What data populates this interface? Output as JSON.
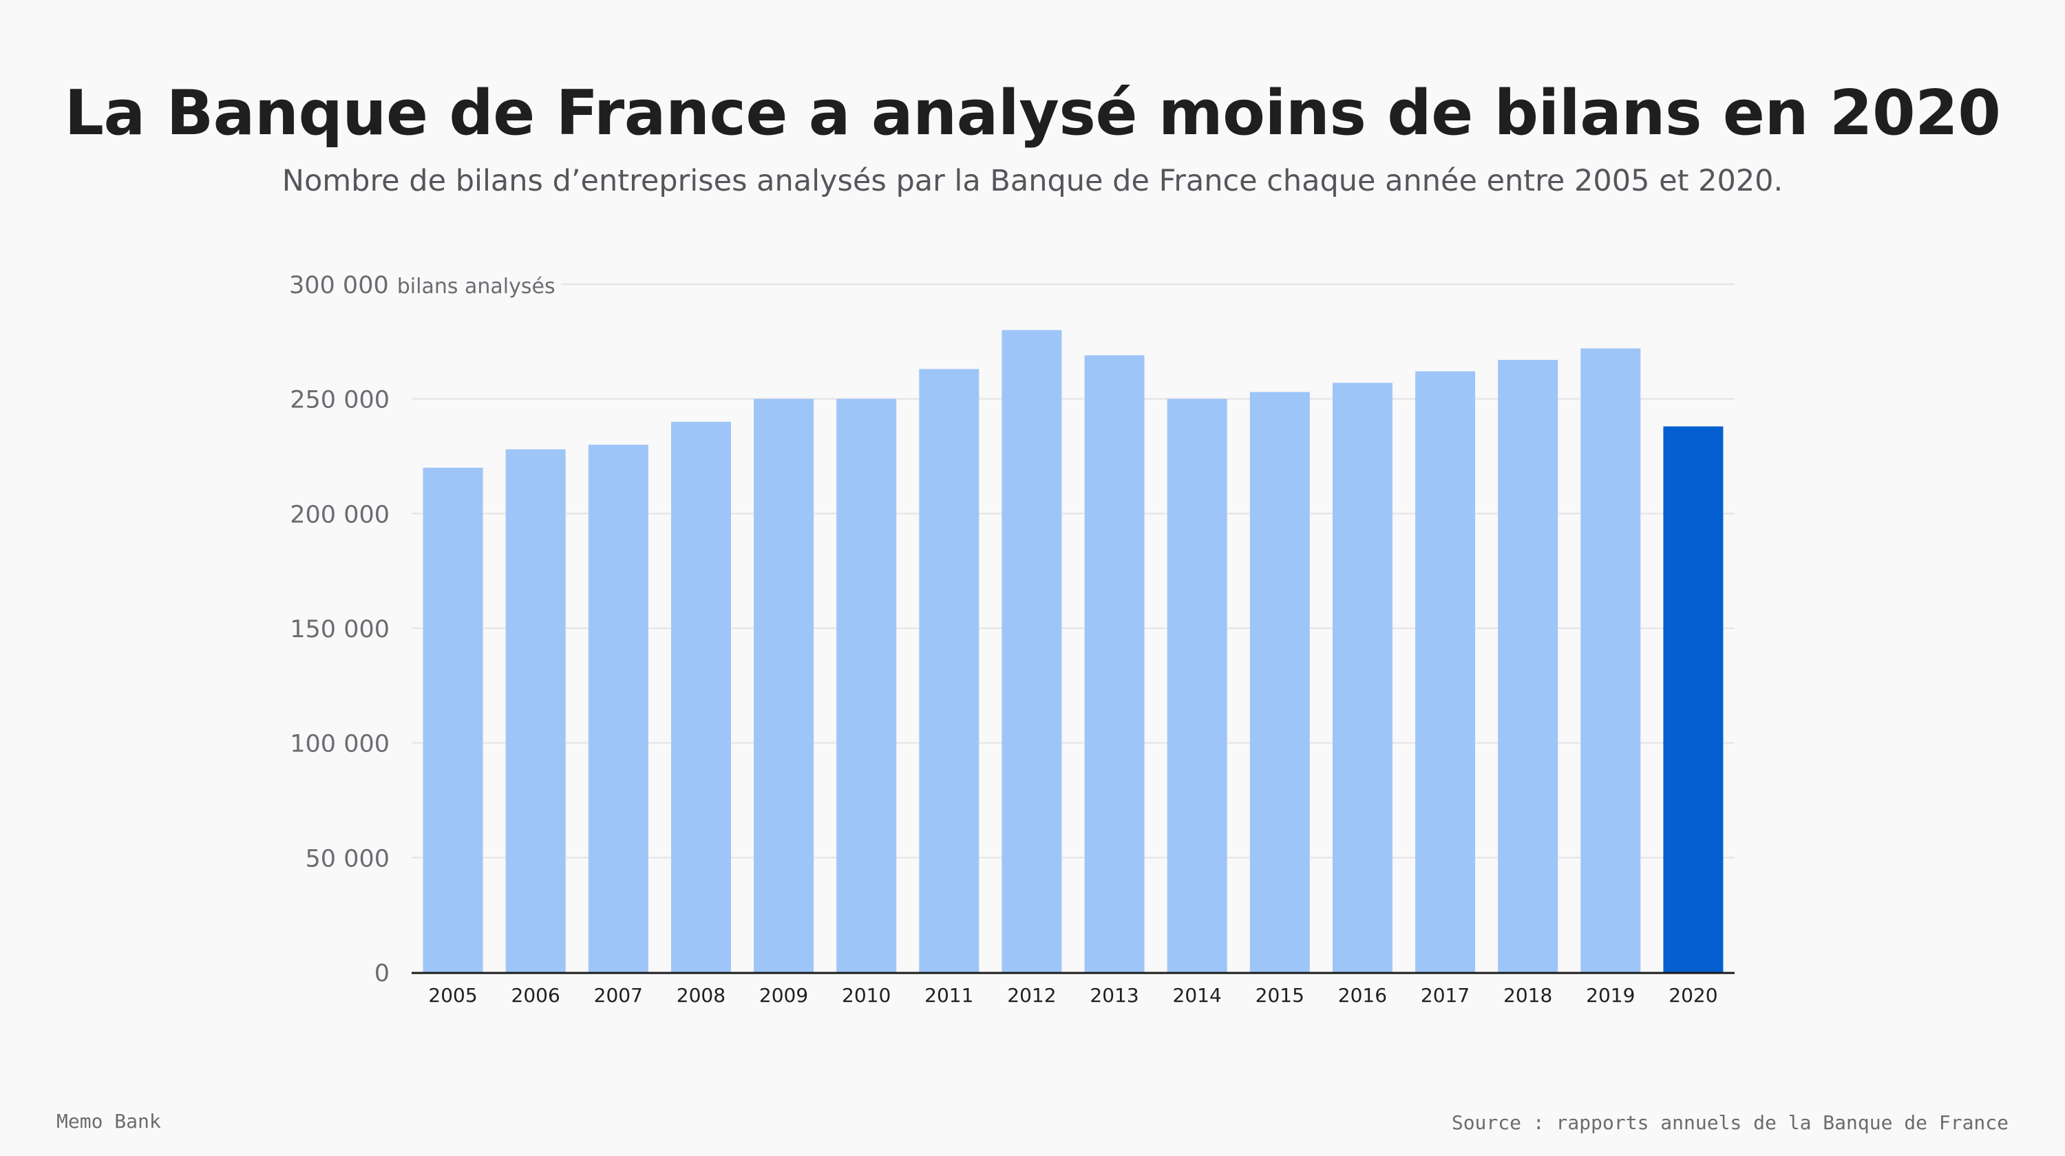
{
  "header": {
    "title": "La Banque de France a analysé moins de bilans en 2020",
    "subtitle": "Nombre de bilans d’entreprises analysés par la Banque de France chaque année entre 2005 et 2020."
  },
  "footer": {
    "brand": "Memo Bank",
    "source": "Source : rapports annuels de la Banque de France"
  },
  "chart_data": {
    "type": "bar",
    "title": "La Banque de France a analysé moins de bilans en 2020",
    "subtitle": "Nombre de bilans d’entreprises analysés par la Banque de France chaque année entre 2005 et 2020.",
    "xlabel": "",
    "ylabel": "bilans analysés",
    "ylim": [
      0,
      300000
    ],
    "yticks": [
      0,
      50000,
      100000,
      150000,
      200000,
      250000,
      300000
    ],
    "ytick_labels": [
      "0",
      "50 000",
      "100 000",
      "150 000",
      "200 000",
      "250 000",
      "300 000"
    ],
    "y_unit_label": "bilans analysés",
    "grid": true,
    "categories": [
      "2005",
      "2006",
      "2007",
      "2008",
      "2009",
      "2010",
      "2011",
      "2012",
      "2013",
      "2014",
      "2015",
      "2016",
      "2017",
      "2018",
      "2019",
      "2020"
    ],
    "values": [
      220000,
      228000,
      230000,
      240000,
      250000,
      250000,
      263000,
      280000,
      269000,
      250000,
      253000,
      257000,
      262000,
      267000,
      272000,
      238000
    ],
    "highlight_category": "2020",
    "colors": {
      "bar": "#9ec5f8",
      "highlight": "#065fd0",
      "grid": "#e3e3e6",
      "baseline": "#1a1a1a",
      "tick_label": "#6b6c72",
      "category_label": "#1f1f1f"
    }
  }
}
